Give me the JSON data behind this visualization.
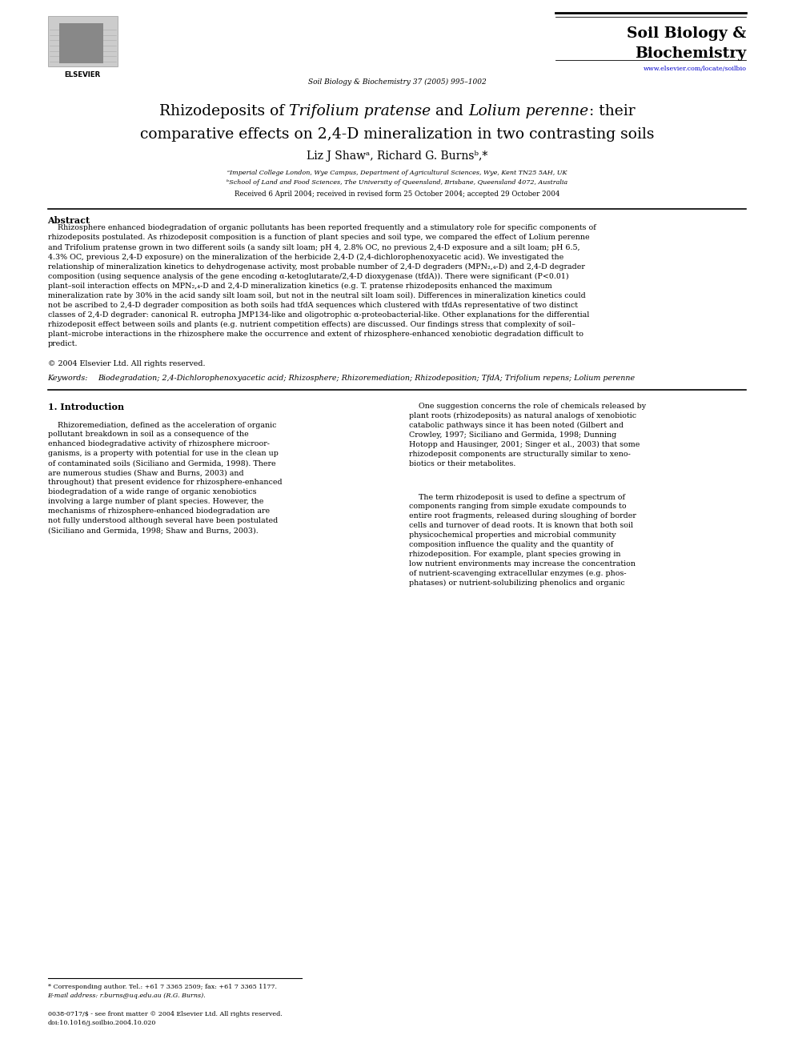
{
  "bg_color": "#ffffff",
  "page_width": 9.92,
  "page_height": 13.23,
  "journal_name_line1": "Soil Biology &",
  "journal_name_line2": "Biochemistry",
  "journal_ref": "Soil Biology & Biochemistry 37 (2005) 995–1002",
  "journal_url": "www.elsevier.com/locate/soilbio",
  "title_line2": "comparative effects on 2,4-D mineralization in two contrasting soils",
  "footer_note": "* Corresponding author. Tel.: +61 7 3365 2509; fax: +61 7 3365 1177.",
  "footer_email": "E-mail address: r.burns@uq.edu.au (R.G. Burns).",
  "footer_issn": "0038-0717/$ - see front matter © 2004 Elsevier Ltd. All rights reserved.",
  "footer_doi": "doi:10.1016/j.soilbio.2004.10.020"
}
